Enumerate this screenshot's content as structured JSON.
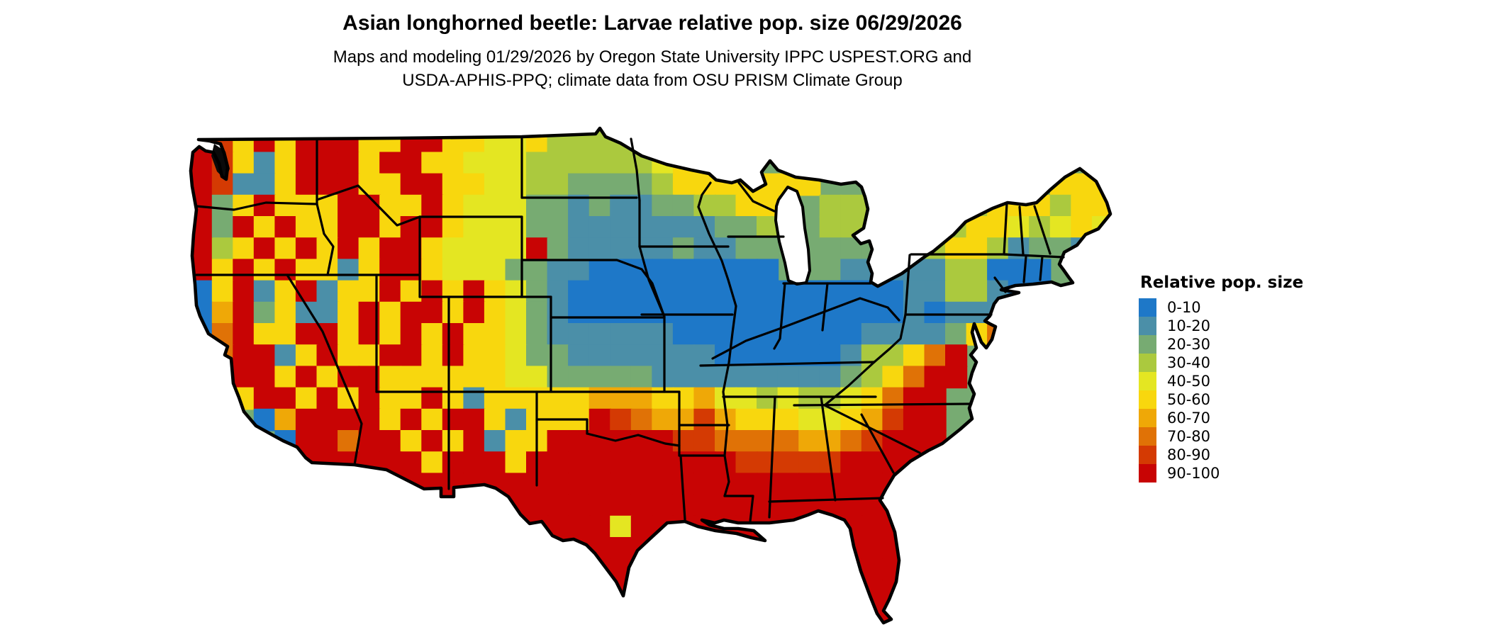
{
  "header": {
    "title": "Asian longhorned beetle: Larvae relative pop. size 06/29/2026",
    "subtitle_line1": "Maps and modeling 01/29/2026 by Oregon State University IPPC USPEST.ORG and",
    "subtitle_line2": "USDA-APHIS-PPQ; climate data from OSU PRISM Climate Group"
  },
  "legend": {
    "title": "Relative pop. size",
    "items": [
      {
        "label": "0-10",
        "color": "#1E78C8"
      },
      {
        "label": "10-20",
        "color": "#4B8FA8"
      },
      {
        "label": "20-30",
        "color": "#77AB72"
      },
      {
        "label": "30-40",
        "color": "#ABC93E"
      },
      {
        "label": "40-50",
        "color": "#E4E622"
      },
      {
        "label": "50-60",
        "color": "#F8D70E"
      },
      {
        "label": "60-70",
        "color": "#EFA807"
      },
      {
        "label": "70-80",
        "color": "#E07206"
      },
      {
        "label": "80-90",
        "color": "#D43A03"
      },
      {
        "label": "90-100",
        "color": "#C80404"
      }
    ]
  },
  "chart_data": {
    "type": "heatmap",
    "title": "Asian longhorned beetle: Larvae relative pop. size 06/29/2026",
    "subtitle": "Maps and modeling 01/29/2026 by Oregon State University IPPC USPEST.ORG and USDA-APHIS-PPQ; climate data from OSU PRISM Climate Group",
    "legend_title": "Relative pop. size",
    "bin_labels": [
      "0-10",
      "10-20",
      "20-30",
      "30-40",
      "40-50",
      "50-60",
      "60-70",
      "70-80",
      "80-90",
      "90-100"
    ],
    "bin_colors": [
      "#1E78C8",
      "#4B8FA8",
      "#77AB72",
      "#ABC93E",
      "#E4E622",
      "#F8D70E",
      "#EFA807",
      "#E07206",
      "#D43A03",
      "#C80404"
    ],
    "outline_color": "#000000",
    "grid_note": "Coarse raster of relative population size bins (0 = bin 0-10 ... 9 = bin 90-100, '.' = no data / water). Rows run north to south over the contiguous US.",
    "grid_origin": [
      270,
      185
    ],
    "cell_size": [
      29.55,
      30.2
    ],
    "grid_rows": [
      [
        "985959",
        "9",
        "95599554",
        "4",
        "5333",
        "3355",
        "...................."
      ],
      [
        "985159",
        "9",
        "95995544",
        "4",
        "3333",
        "3345",
        "55..",
        "................"
      ],
      [
        "981159",
        "9",
        "95599554",
        "4",
        "3322",
        "2235",
        "555555",
        "..",
        "........",
        ".555"
      ],
      [
        "925955",
        "5",
        "99559544",
        "4",
        "2212",
        "1122",
        "3355",
        "..",
        "333",
        "..",
        "23355",
        "5355"
      ],
      [
        "929595",
        "5",
        "99599544",
        "4",
        "2211",
        "1111",
        "1223",
        "..",
        "333",
        "..",
        "23554",
        "3454"
      ],
      [
        "935959",
        "5",
        "95995444",
        "4",
        "9211",
        "1112",
        "1122",
        "..",
        "222",
        "..",
        "35531",
        "221."
      ],
      [
        "959595",
        "51",
        "5995444",
        "22110",
        "0000",
        "0000",
        "..",
        "211",
        "11",
        "13300",
        "0..."
      ],
      [
        "059159",
        "15",
        "5959595",
        "42100",
        "0000",
        "0000",
        "00",
        "000",
        "01",
        "13310",
        "0..."
      ],
      [
        "069251",
        "15",
        "9599595",
        "42100",
        "0000",
        "0000",
        "00",
        "000",
        "01",
        "01111",
        "...."
      ],
      [
        "079559",
        "95",
        "9595955",
        "42111",
        "1110",
        "0000",
        "00",
        "001",
        "11",
        "1257.",
        "...."
      ],
      [
        "079915",
        "95",
        "5995955",
        "42211",
        "1111",
        "1000",
        "00",
        "013",
        "35",
        "79...",
        "...."
      ],
      [
        "089959",
        "59",
        "9555555",
        "44222",
        "2211",
        "1111",
        "11",
        "123",
        "57",
        "99...",
        "...."
      ],
      [
        ".05995",
        "95",
        "9559515",
        "55556",
        "6655",
        "6443",
        "43",
        "345",
        "79",
        "9....",
        "...."
      ],
      [
        "...",
        "069",
        "99",
        "95959",
        "95155",
        "59",
        "8766",
        "8655",
        "54",
        "456",
        "89",
        "9....",
        "...."
      ],
      [
        "...",
        ".09",
        "97",
        "99595",
        "91559",
        "99",
        "9998",
        "8777",
        "76",
        "678",
        "99",
        "9....",
        "...."
      ],
      [
        ".....",
        "9",
        "99",
        "99959",
        "99599",
        "99",
        "9999",
        "9988",
        "88",
        "899",
        "99",
        "9....",
        "...."
      ],
      [
        "........",
        "99999",
        "99999",
        "99",
        "9999",
        "9999",
        "99",
        "999",
        "9.",
        "........."
      ],
      [
        ".............",
        ".",
        "9999",
        "99",
        "9999",
        "9999",
        "99",
        "99999",
        "........."
      ],
      [
        "...............",
        "999",
        "99",
        "4999",
        "999",
        "999",
        "9999",
        ".",
        "........."
      ],
      [
        ".................",
        "999",
        "999",
        ".",
        ".......",
        "999",
        ".........."
      ],
      [
        "..................",
        "999",
        "..........",
        "999",
        ".........."
      ],
      [
        "...................",
        "99",
        "..........",
        "999",
        ".........."
      ],
      [
        "..................",
        "999",
        "...........",
        "99",
        ".........."
      ]
    ]
  }
}
